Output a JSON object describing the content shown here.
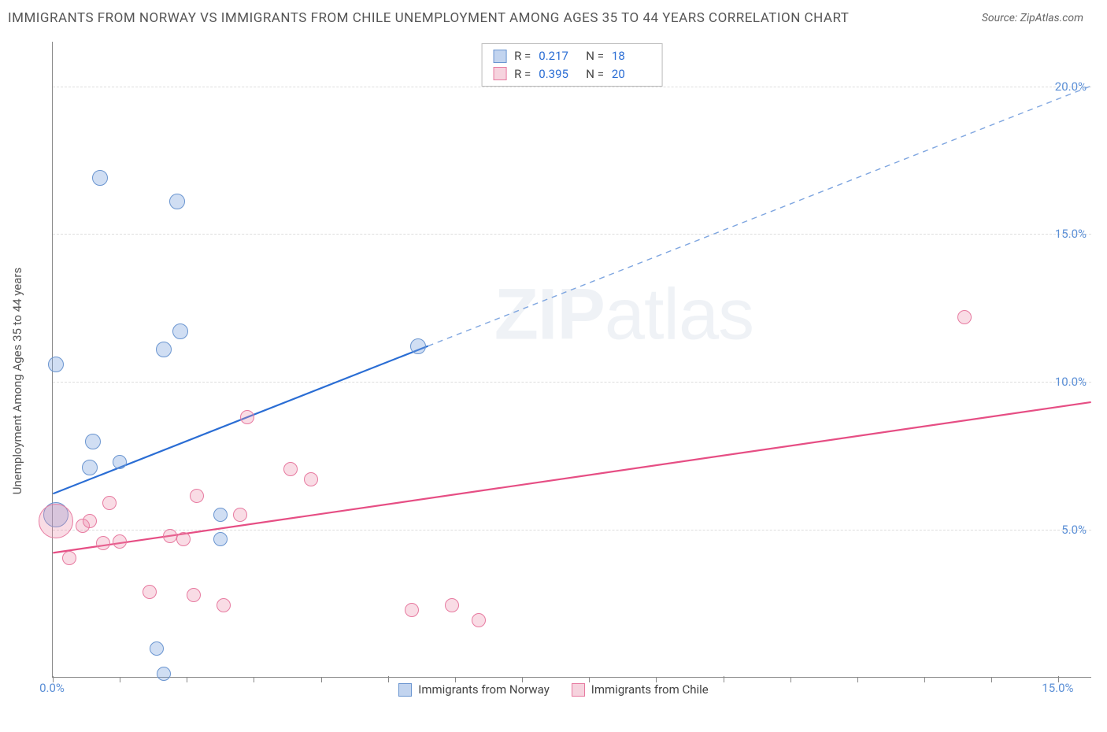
{
  "title": "IMMIGRANTS FROM NORWAY VS IMMIGRANTS FROM CHILE UNEMPLOYMENT AMONG AGES 35 TO 44 YEARS CORRELATION CHART",
  "source": "Source: ZipAtlas.com",
  "y_axis_label": "Unemployment Among Ages 35 to 44 years",
  "watermark": "ZIPatlas",
  "chart": {
    "type": "scatter",
    "x_range": [
      0,
      15.5
    ],
    "y_range": [
      0,
      21.5
    ],
    "background_color": "#ffffff",
    "grid_color": "#dddddd",
    "grid_style": "dashed",
    "y_ticks": [
      5.0,
      10.0,
      15.0,
      20.0
    ],
    "y_tick_labels": [
      "5.0%",
      "10.0%",
      "15.0%",
      "20.0%"
    ],
    "x_ticks": [
      0.0,
      5.0,
      10.0,
      15.0
    ],
    "x_tick_labels": [
      "0.0%",
      "",
      "",
      "15.0%"
    ],
    "x_minor_ticks": [
      1,
      2,
      3,
      4,
      6,
      7,
      8,
      9,
      11,
      12,
      13,
      14
    ],
    "y_tick_label_color": "#5b8fd6",
    "x_tick_label_color": "#5b8fd6"
  },
  "legend_top": {
    "rows": [
      {
        "swatch": "blue",
        "r_label": "R =",
        "r_value": "0.217",
        "n_label": "N =",
        "n_value": "18"
      },
      {
        "swatch": "pink",
        "r_label": "R =",
        "r_value": "0.395",
        "n_label": "N =",
        "n_value": "20"
      }
    ]
  },
  "legend_bottom": {
    "items": [
      {
        "swatch": "blue",
        "label": "Immigrants from Norway"
      },
      {
        "swatch": "pink",
        "label": "Immigrants from Chile"
      }
    ]
  },
  "series": [
    {
      "name": "Immigrants from Norway",
      "color_fill": "rgba(120,160,220,0.35)",
      "color_stroke": "#6a95d0",
      "marker_class": "dot-blue",
      "trend": {
        "solid": {
          "x1": 0.0,
          "y1": 6.2,
          "x2": 5.6,
          "y2": 11.2
        },
        "dashed": {
          "x1": 5.6,
          "y1": 11.2,
          "x2": 15.5,
          "y2": 20.0
        },
        "solid_color": "#2a6dd4",
        "solid_width": 2.2,
        "dashed_color": "#7fa6e0",
        "dashed_width": 1.4,
        "dash_pattern": "7,6"
      },
      "points": [
        {
          "x": 0.05,
          "y": 5.5,
          "r": 16
        },
        {
          "x": 0.05,
          "y": 10.6,
          "r": 10
        },
        {
          "x": 0.7,
          "y": 16.9,
          "r": 10
        },
        {
          "x": 1.85,
          "y": 16.1,
          "r": 10
        },
        {
          "x": 0.55,
          "y": 7.1,
          "r": 10
        },
        {
          "x": 0.6,
          "y": 8.0,
          "r": 10
        },
        {
          "x": 1.0,
          "y": 7.3,
          "r": 9
        },
        {
          "x": 1.65,
          "y": 11.1,
          "r": 10
        },
        {
          "x": 1.9,
          "y": 11.7,
          "r": 10
        },
        {
          "x": 2.5,
          "y": 5.5,
          "r": 9
        },
        {
          "x": 2.5,
          "y": 4.7,
          "r": 9
        },
        {
          "x": 1.55,
          "y": 1.0,
          "r": 9
        },
        {
          "x": 1.65,
          "y": 0.15,
          "r": 9
        },
        {
          "x": 5.45,
          "y": 11.2,
          "r": 10
        }
      ]
    },
    {
      "name": "Immigrants from Chile",
      "color_fill": "rgba(235,140,170,0.30)",
      "color_stroke": "#e77aa0",
      "marker_class": "dot-pink",
      "trend": {
        "solid": {
          "x1": 0.0,
          "y1": 4.2,
          "x2": 15.5,
          "y2": 9.3
        },
        "dashed": null,
        "solid_color": "#e64e84",
        "solid_width": 2.2
      },
      "points": [
        {
          "x": 0.05,
          "y": 5.3,
          "r": 22
        },
        {
          "x": 0.25,
          "y": 4.05,
          "r": 9
        },
        {
          "x": 0.45,
          "y": 5.15,
          "r": 9
        },
        {
          "x": 0.55,
          "y": 5.3,
          "r": 9
        },
        {
          "x": 0.75,
          "y": 4.55,
          "r": 9
        },
        {
          "x": 0.85,
          "y": 5.9,
          "r": 9
        },
        {
          "x": 1.0,
          "y": 4.6,
          "r": 9
        },
        {
          "x": 1.45,
          "y": 2.9,
          "r": 9
        },
        {
          "x": 1.75,
          "y": 4.8,
          "r": 9
        },
        {
          "x": 1.95,
          "y": 4.7,
          "r": 9
        },
        {
          "x": 2.1,
          "y": 2.8,
          "r": 9
        },
        {
          "x": 2.15,
          "y": 6.15,
          "r": 9
        },
        {
          "x": 2.55,
          "y": 2.45,
          "r": 9
        },
        {
          "x": 2.8,
          "y": 5.5,
          "r": 9
        },
        {
          "x": 2.9,
          "y": 8.8,
          "r": 9
        },
        {
          "x": 3.55,
          "y": 7.05,
          "r": 9
        },
        {
          "x": 3.85,
          "y": 6.7,
          "r": 9
        },
        {
          "x": 5.35,
          "y": 2.3,
          "r": 9
        },
        {
          "x": 5.95,
          "y": 2.45,
          "r": 9
        },
        {
          "x": 6.35,
          "y": 1.95,
          "r": 9
        },
        {
          "x": 13.6,
          "y": 12.2,
          "r": 9
        }
      ]
    }
  ]
}
